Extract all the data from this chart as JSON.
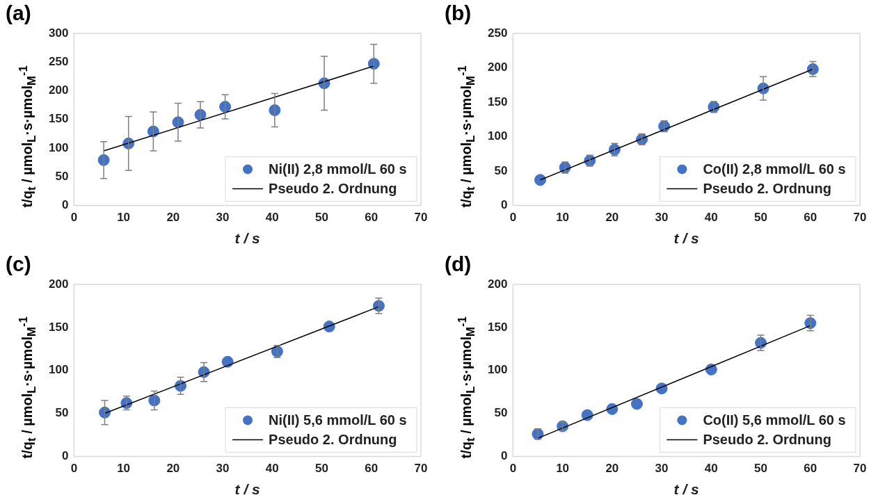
{
  "chart_data": [
    {
      "type": "scatter",
      "title": "(a)",
      "xlabel": "t / s",
      "ylabel": "t/q$_{t}$ / µmol$_{L}$·s·µmol$_{M}$$^{-1}$",
      "xlim": [
        0,
        70
      ],
      "xticks": [
        0,
        10,
        20,
        30,
        40,
        50,
        60,
        70
      ],
      "ylim": [
        0,
        300
      ],
      "yticks": [
        0,
        50,
        100,
        150,
        200,
        250,
        300
      ],
      "grid": false,
      "legend": "bottom right",
      "marker": "circle",
      "series": [
        {
          "name": "Ni(II) 2,8 mmol/L 60 s",
          "type": "scatter",
          "color": "#4472c4",
          "x": [
            6,
            11,
            16,
            21,
            25.5,
            30.5,
            40.5,
            50.5,
            60.5
          ],
          "values": [
            79,
            108,
            129,
            145,
            158,
            172,
            166,
            213,
            247
          ],
          "errors": [
            32,
            47,
            34,
            33,
            23,
            21,
            29,
            47,
            34
          ]
        },
        {
          "name": "Pseudo 2. Ordnung",
          "type": "line",
          "color": "#000000",
          "marker": "none",
          "line_style": "solid",
          "x": [
            6,
            60.5
          ],
          "values": [
            95,
            243
          ]
        }
      ]
    },
    {
      "type": "scatter",
      "title": "(b)",
      "xlabel": "t / s",
      "ylabel": "t/q$_{t}$ / µmol$_{L}$·s·µmol$_{M}$$^{-1}$",
      "xlim": [
        0,
        70
      ],
      "xticks": [
        0,
        10,
        20,
        30,
        40,
        50,
        60,
        70
      ],
      "ylim": [
        0,
        250
      ],
      "yticks": [
        0,
        50,
        100,
        150,
        200,
        250
      ],
      "grid": false,
      "legend": "bottom right",
      "marker": "circle",
      "series": [
        {
          "name": "Co(II) 2,8 mmol/L 60 s",
          "type": "scatter",
          "color": "#4472c4",
          "x": [
            5.5,
            10.5,
            15.5,
            20.5,
            26,
            30.5,
            40.5,
            50.5,
            60.5
          ],
          "values": [
            37,
            55,
            65,
            81,
            96,
            115,
            143,
            170,
            198
          ],
          "errors": [
            null,
            8,
            8,
            9,
            8,
            8,
            8,
            17,
            11
          ]
        },
        {
          "name": "Pseudo 2. Ordnung",
          "type": "line",
          "color": "#000000",
          "marker": "none",
          "line_style": "solid",
          "x": [
            5.5,
            60.5
          ],
          "values": [
            37,
            198
          ]
        }
      ]
    },
    {
      "type": "scatter",
      "title": "(c)",
      "xlabel": "t / s",
      "ylabel": "t/q$_{t}$ / µmol$_{L}$·s·µmol$_{M}$$^{-1}$",
      "xlim": [
        0,
        70
      ],
      "xticks": [
        0,
        10,
        20,
        30,
        40,
        50,
        60,
        70
      ],
      "ylim": [
        0,
        200
      ],
      "yticks": [
        0,
        50,
        100,
        150,
        200
      ],
      "grid": false,
      "legend": "bottom right",
      "marker": "circle",
      "series": [
        {
          "name": "Ni(II) 5,6 mmol/L 60 s",
          "type": "scatter",
          "color": "#4472c4",
          "x": [
            6.2,
            10.6,
            16.2,
            21.5,
            26.2,
            31,
            41,
            51.5,
            61.5
          ],
          "values": [
            51,
            62,
            65,
            82,
            98,
            110,
            122,
            151,
            175
          ],
          "errors": [
            14,
            8,
            11,
            10,
            11,
            null,
            7,
            null,
            9
          ]
        },
        {
          "name": "Pseudo 2. Ordnung",
          "type": "line",
          "color": "#000000",
          "marker": "none",
          "line_style": "solid",
          "x": [
            6.2,
            61.5
          ],
          "values": [
            50,
            174
          ]
        }
      ]
    },
    {
      "type": "scatter",
      "title": "(d)",
      "xlabel": "t / s",
      "ylabel": "t/q$_{t}$ / µmol$_{L}$·s·µmol$_{M}$$^{-1}$",
      "xlim": [
        0,
        70
      ],
      "xticks": [
        0,
        10,
        20,
        30,
        40,
        50,
        60,
        70
      ],
      "ylim": [
        0,
        200
      ],
      "yticks": [
        0,
        50,
        100,
        150,
        200
      ],
      "grid": false,
      "legend": "bottom right",
      "marker": "circle",
      "series": [
        {
          "name": "Co(II) 5,6 mmol/L 60 s",
          "type": "scatter",
          "color": "#4472c4",
          "x": [
            5,
            10,
            15,
            20,
            25,
            30,
            40,
            50,
            60
          ],
          "values": [
            26,
            35,
            48,
            55,
            61,
            79,
            101,
            132,
            155
          ],
          "errors": [
            6,
            5,
            null,
            null,
            null,
            null,
            null,
            9,
            9
          ]
        },
        {
          "name": "Pseudo 2. Ordnung",
          "type": "line",
          "color": "#000000",
          "marker": "none",
          "line_style": "solid",
          "x": [
            5,
            60
          ],
          "values": [
            21,
            152
          ]
        }
      ]
    }
  ]
}
